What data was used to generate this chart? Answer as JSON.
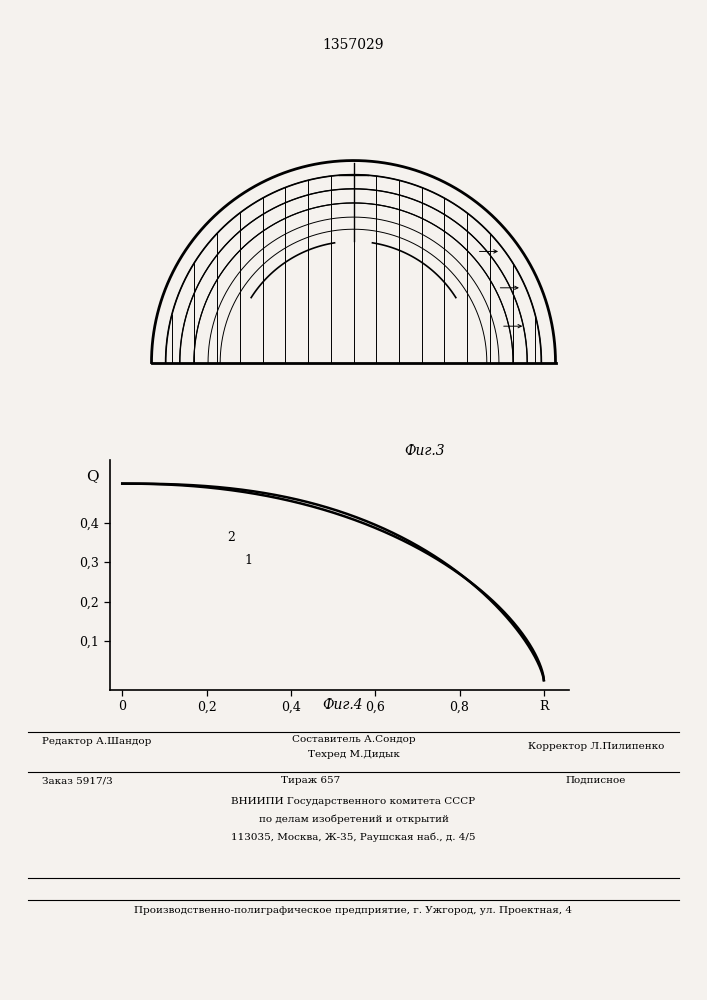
{
  "patent_number": "1357029",
  "fig3_label": "Фиг.3",
  "fig4_label": "Фиг.4",
  "ylabel": "Q",
  "xlabel": "R",
  "ytick_labels": [
    "0,1",
    "0,2",
    "0,3",
    "0,4"
  ],
  "ytick_vals": [
    0.1,
    0.2,
    0.3,
    0.4
  ],
  "xtick_labels": [
    "0",
    "0,2",
    "0,4",
    "0,6",
    "0,8",
    "R"
  ],
  "xtick_vals": [
    0.0,
    0.2,
    0.4,
    0.6,
    0.8,
    1.0
  ],
  "curve1_label": "1",
  "curve2_label": "2",
  "bg_color": "#f5f2ee",
  "text_color": "#000000",
  "footer_line1_left": "Редактор А.Шандор",
  "footer_line1_c1": "Составитель А.Сондор",
  "footer_line1_c2": "Техред М.Дидык",
  "footer_line1_right": "Корректор Л.Пилипенко",
  "footer_line2_col1": "Заказ 5917/3",
  "footer_line2_col2": "Тираж 657",
  "footer_line2_col3": "Подписное",
  "footer_line3": "ВНИИПИ Государственного комитета СССР",
  "footer_line4": "по делам изобретений и открытий",
  "footer_line5": "113035, Москва, Ж-35, Раушская наб., д. 4/5",
  "footer_bottom": "Производственно-полиграфическое предприятие, г. Ужгород, ул. Проектная, 4"
}
